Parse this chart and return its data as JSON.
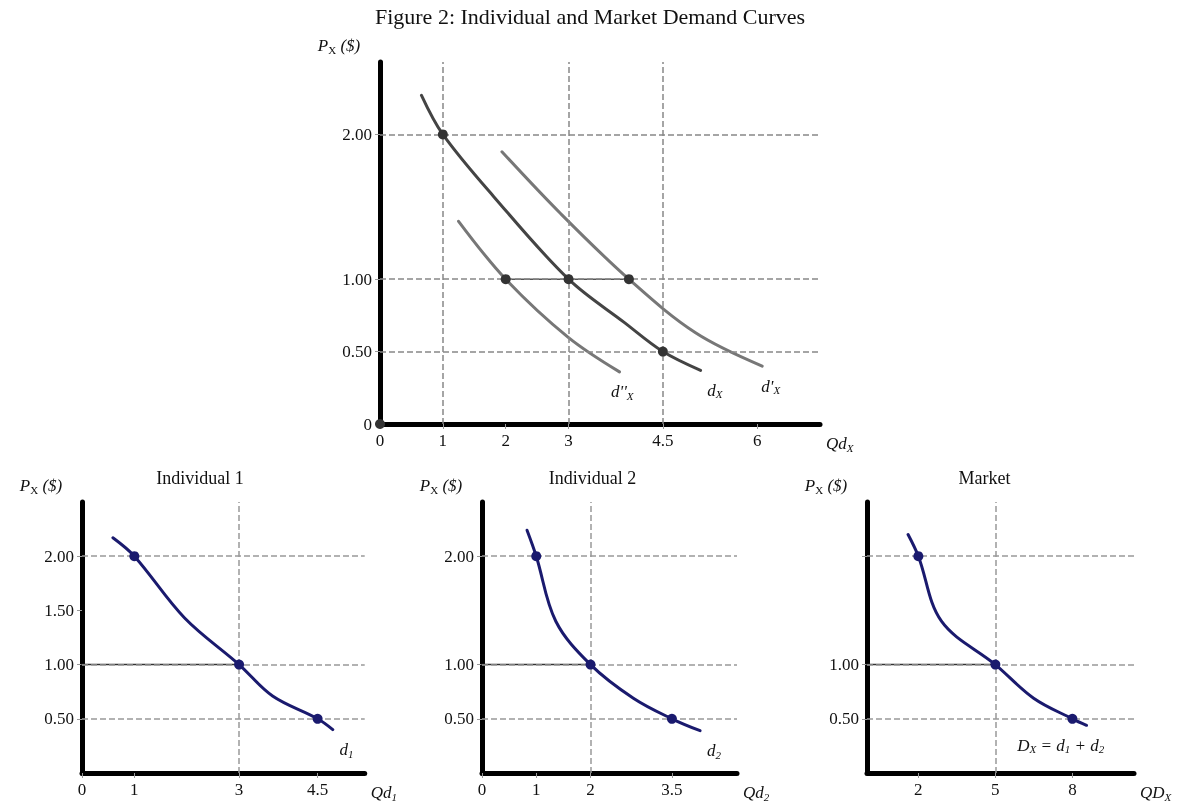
{
  "chart_data": [
    {
      "type": "line",
      "title": "Figure 2: Individual and Market Demand Curves",
      "xlabel": "Qd$_{X}$",
      "ylabel": "P$_{X}$ ($)",
      "xlim": [
        0,
        7
      ],
      "ylim": [
        0,
        2.5
      ],
      "xticks": [
        0,
        1,
        2,
        3,
        4.5,
        6
      ],
      "yticks": [
        0,
        {
          "value": 0.5,
          "label": "0.50"
        },
        {
          "value": 1,
          "label": "1.00"
        },
        {
          "value": 2,
          "label": "2.00"
        }
      ],
      "grid": false,
      "series": [
        {
          "name": "d$_{X}$",
          "color": "#444444",
          "marker": "none",
          "x": [
            0.66,
            1,
            1.81,
            3,
            3.89,
            4.5,
            5.1
          ],
          "values": [
            2.27,
            2,
            1.57,
            1,
            0.7,
            0.5,
            0.37
          ]
        },
        {
          "name": "d'$_{X}$",
          "color": "#777777",
          "marker": "none",
          "x": [
            1.94,
            2.88,
            3.96,
            5.02,
            6.08
          ],
          "values": [
            1.88,
            1.45,
            1,
            0.63,
            0.4
          ]
        },
        {
          "name": "d''$_{X}$",
          "color": "#777777",
          "marker": "none",
          "x": [
            1.25,
            2,
            2.99,
            3.81
          ],
          "values": [
            1.4,
            1,
            0.6,
            0.36
          ]
        },
        {
          "type": "line",
          "color": "#555555",
          "marker": "none",
          "x": [
            2,
            3.96
          ],
          "values": [
            1,
            1
          ]
        },
        {
          "type": "scatter",
          "color": "#333333",
          "marker": "circle",
          "x": [
            0,
            1,
            2,
            3,
            3.96,
            4.5
          ],
          "values": [
            0,
            2,
            1,
            1,
            1,
            0.5
          ]
        }
      ],
      "ref_lines": [
        {
          "axis": "y",
          "value": 2,
          "color": "#888888",
          "line_style": "dashed"
        },
        {
          "axis": "y",
          "value": 1,
          "color": "#888888",
          "line_style": "dashed"
        },
        {
          "axis": "y",
          "value": 0.5,
          "color": "#888888",
          "line_style": "dashed"
        },
        {
          "axis": "x",
          "value": 1,
          "color": "#888888",
          "line_style": "dashed"
        },
        {
          "axis": "x",
          "value": 3,
          "color": "#888888",
          "line_style": "dashed"
        },
        {
          "axis": "x",
          "value": 4.5,
          "color": "#888888",
          "line_style": "dashed"
        }
      ]
    },
    {
      "type": "line",
      "title": "Individual 1",
      "xlabel": "Qd$_{1}$",
      "ylabel": "P$_{X}$ ($)",
      "xlim": [
        0,
        5.4
      ],
      "ylim": [
        0,
        2.5
      ],
      "xticks": [
        0,
        1,
        3,
        4.5
      ],
      "yticks": [
        {
          "value": 0.5,
          "label": "0.50"
        },
        {
          "value": 1,
          "label": "1.00"
        },
        {
          "value": 1.5,
          "label": "1.50"
        },
        {
          "value": 2,
          "label": "2.00"
        }
      ],
      "grid": false,
      "series": [
        {
          "name": "d$_{1}$",
          "color": "#1a1a6e",
          "marker": "none",
          "x": [
            0.59,
            1,
            1.96,
            3,
            3.64,
            4.5,
            4.79
          ],
          "values": [
            2.17,
            2,
            1.43,
            1,
            0.71,
            0.5,
            0.4
          ]
        },
        {
          "type": "line",
          "color": "#333333",
          "marker": "none",
          "x": [
            0,
            3
          ],
          "values": [
            1,
            1
          ]
        },
        {
          "type": "scatter",
          "color": "#1a1a6e",
          "marker": "circle",
          "x": [
            1,
            3,
            4.5
          ],
          "values": [
            2,
            1,
            0.5
          ]
        }
      ],
      "ref_lines": [
        {
          "axis": "y",
          "value": 2,
          "color": "#999999",
          "line_style": "dashed"
        },
        {
          "axis": "y",
          "value": 1,
          "color": "#999999",
          "line_style": "dashed"
        },
        {
          "axis": "y",
          "value": 0.5,
          "color": "#999999",
          "line_style": "dashed"
        },
        {
          "axis": "x",
          "value": 3,
          "color": "#999999",
          "line_style": "dashed"
        }
      ]
    },
    {
      "type": "line",
      "title": "Individual 2",
      "xlabel": "Qd$_{2}$",
      "ylabel": "P$_{X}$ ($)",
      "xlim": [
        0,
        4.7
      ],
      "ylim": [
        0,
        2.5
      ],
      "xticks": [
        0,
        1,
        2,
        3.5
      ],
      "yticks": [
        {
          "value": 0.5,
          "label": "0.50"
        },
        {
          "value": 1,
          "label": "1.00"
        },
        {
          "value": 2,
          "label": "2.00"
        }
      ],
      "grid": false,
      "series": [
        {
          "name": "d$_{2}$",
          "color": "#1a1a6e",
          "marker": "none",
          "x": [
            0.83,
            1,
            1.36,
            2,
            2.79,
            3.5,
            4.02
          ],
          "values": [
            2.24,
            2,
            1.4,
            1,
            0.69,
            0.5,
            0.39
          ]
        },
        {
          "type": "line",
          "color": "#333333",
          "marker": "none",
          "x": [
            0,
            2
          ],
          "values": [
            1,
            1
          ]
        },
        {
          "type": "scatter",
          "color": "#1a1a6e",
          "marker": "circle",
          "x": [
            1,
            2,
            3.5
          ],
          "values": [
            2,
            1,
            0.5
          ]
        }
      ],
      "ref_lines": [
        {
          "axis": "y",
          "value": 2,
          "color": "#999999",
          "line_style": "dashed"
        },
        {
          "axis": "y",
          "value": 1,
          "color": "#999999",
          "line_style": "dashed"
        },
        {
          "axis": "y",
          "value": 0.5,
          "color": "#999999",
          "line_style": "dashed"
        },
        {
          "axis": "x",
          "value": 2,
          "color": "#999999",
          "line_style": "dashed"
        }
      ]
    },
    {
      "type": "line",
      "title": "Market",
      "xlabel": "QD$_{X}$",
      "ylabel": "P$_{X}$ ($)",
      "xlim": [
        0,
        10.4
      ],
      "ylim": [
        0,
        2.5
      ],
      "xticks": [
        2,
        5,
        8
      ],
      "yticks": [
        {
          "value": 0.5,
          "label": "0.50"
        },
        {
          "value": 1,
          "label": "1.00"
        },
        {
          "value": 2,
          "label": null
        }
      ],
      "grid": false,
      "series": [
        {
          "name": "D$_{X}$ = d$_{1}$ + d$_{2}$",
          "color": "#1a1a6e",
          "marker": "none",
          "x": [
            1.6,
            2,
            2.9,
            5,
            6.49,
            8,
            8.55
          ],
          "values": [
            2.2,
            2,
            1.4,
            1,
            0.69,
            0.5,
            0.44
          ]
        },
        {
          "type": "line",
          "color": "#333333",
          "marker": "none",
          "x": [
            0,
            5
          ],
          "values": [
            1,
            1
          ]
        },
        {
          "type": "scatter",
          "color": "#1a1a6e",
          "marker": "circle",
          "x": [
            2,
            5,
            8
          ],
          "values": [
            2,
            1,
            0.5
          ]
        }
      ],
      "ref_lines": [
        {
          "axis": "y",
          "value": 2,
          "color": "#999999",
          "line_style": "dashed"
        },
        {
          "axis": "y",
          "value": 1,
          "color": "#999999",
          "line_style": "dashed"
        },
        {
          "axis": "y",
          "value": 0.5,
          "color": "#999999",
          "line_style": "dashed"
        },
        {
          "axis": "x",
          "value": 5,
          "color": "#999999",
          "line_style": "dashed"
        }
      ]
    }
  ]
}
